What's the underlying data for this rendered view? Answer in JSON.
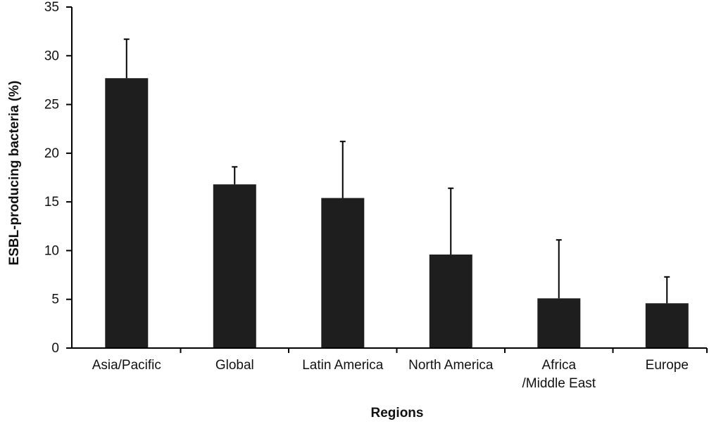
{
  "chart_data": {
    "type": "bar",
    "title": "",
    "xlabel": "Regions",
    "ylabel": "ESBL-producing bacteria (%)",
    "ylim": [
      0,
      35
    ],
    "yticks": [
      0,
      5,
      10,
      15,
      20,
      25,
      30,
      35
    ],
    "grid": false,
    "categories": [
      [
        "Asia/Pacific"
      ],
      [
        "Global"
      ],
      [
        "Latin America"
      ],
      [
        "North America"
      ],
      [
        "Africa",
        "/Middle East"
      ],
      [
        "Europe"
      ]
    ],
    "values": [
      27.7,
      16.8,
      15.4,
      9.6,
      5.1,
      4.6
    ],
    "error_upper": [
      31.7,
      18.6,
      21.2,
      16.4,
      11.1,
      7.3
    ],
    "colors": {
      "bar": "#1e1e1e",
      "axis": "#000000",
      "text": "#111111"
    }
  }
}
